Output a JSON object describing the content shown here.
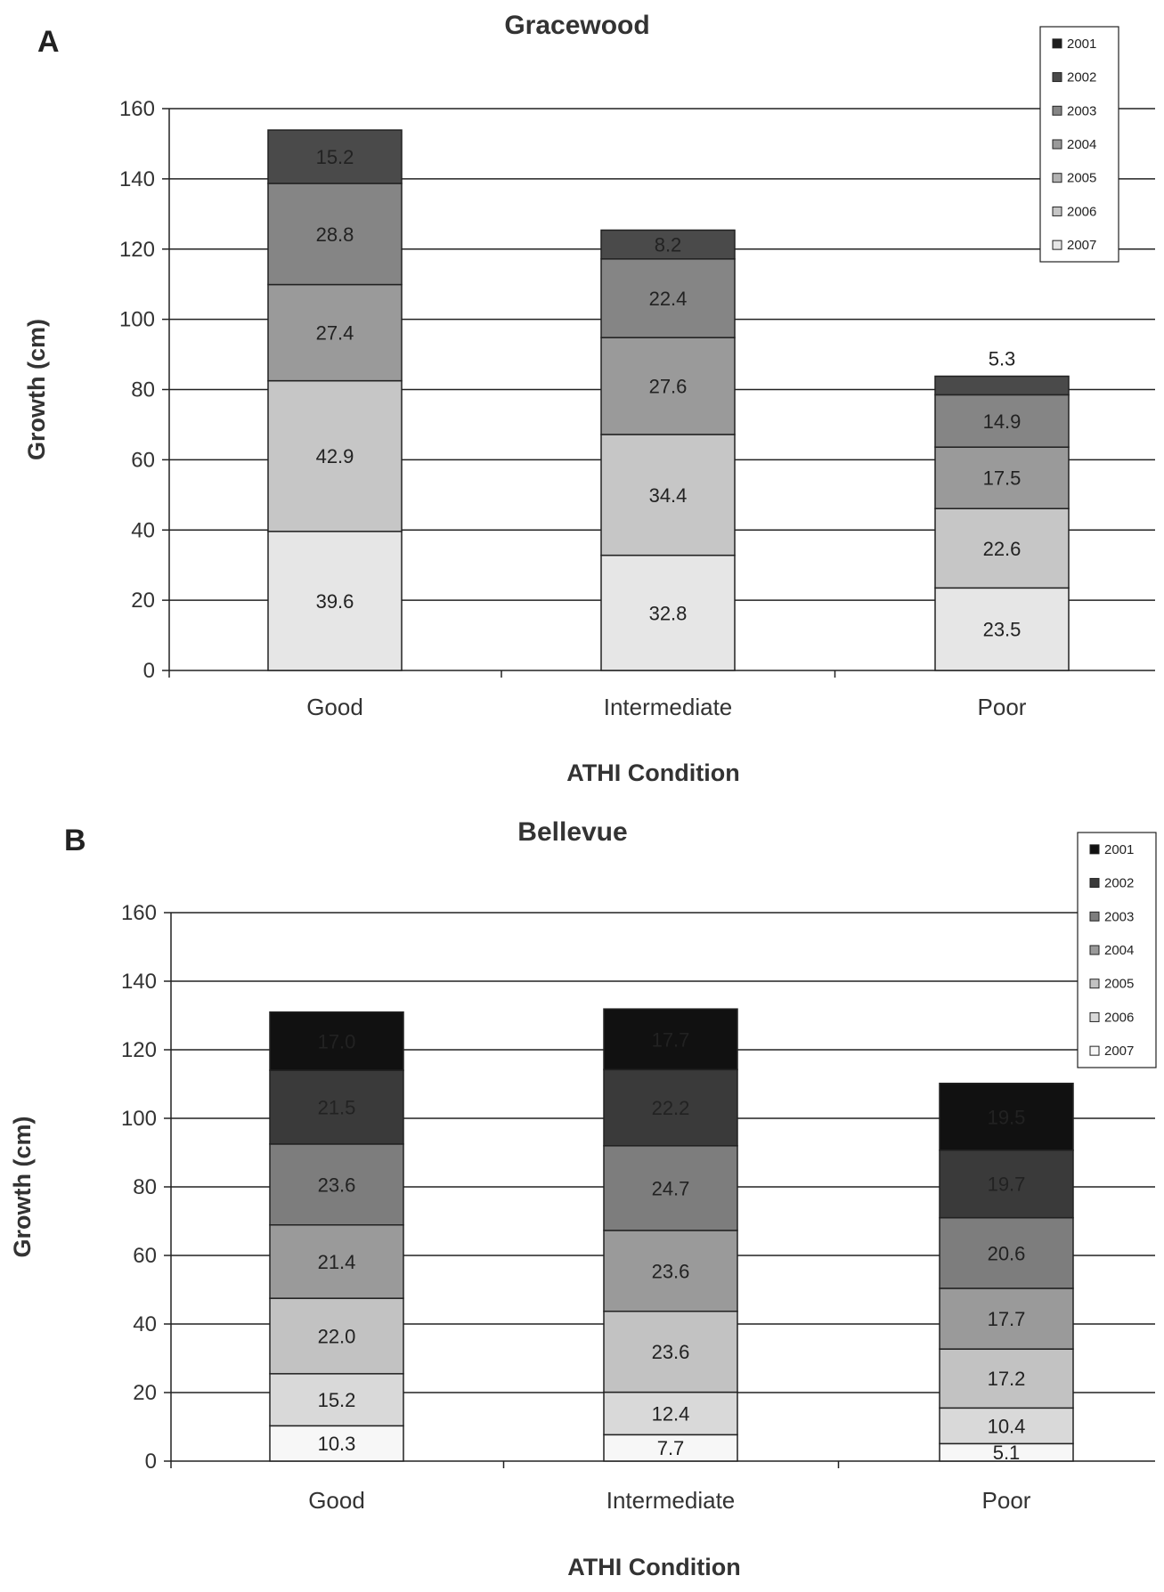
{
  "chart_data": [
    {
      "type": "bar",
      "stacked": true,
      "panel": "A",
      "title": "Gracewood",
      "xlabel": "ATHI Condition",
      "ylabel": "Growth (cm)",
      "ylim": [
        0,
        160
      ],
      "yticks": [
        0,
        20,
        40,
        60,
        80,
        100,
        120,
        140,
        160
      ],
      "grid": true,
      "legend": "top-right",
      "categories": [
        "Good",
        "Intermediate",
        "Poor"
      ],
      "series": [
        {
          "name": "2007",
          "color": "#e6e6e6",
          "values": [
            39.6,
            32.8,
            23.5
          ],
          "labels": [
            "39.6",
            "32.8",
            "23.5"
          ]
        },
        {
          "name": "2006",
          "color": "#c6c6c6",
          "values": [
            42.9,
            34.4,
            22.6
          ],
          "labels": [
            "42.9",
            "34.4",
            "22.6"
          ]
        },
        {
          "name": "2005",
          "color": "#b2b2b2",
          "values": [
            0,
            0,
            0
          ],
          "labels": [
            "",
            "",
            ""
          ]
        },
        {
          "name": "2004",
          "color": "#9a9a9a",
          "values": [
            27.4,
            27.6,
            17.5
          ],
          "labels": [
            "27.4",
            "27.6",
            "17.5"
          ]
        },
        {
          "name": "2003",
          "color": "#858585",
          "values": [
            28.8,
            22.4,
            14.9
          ],
          "labels": [
            "28.8",
            "22.4",
            "14.9"
          ]
        },
        {
          "name": "2002",
          "color": "#4a4a4a",
          "values": [
            15.2,
            8.2,
            5.3
          ],
          "labels": [
            "15.2",
            "8.2",
            "5.3"
          ]
        },
        {
          "name": "2001",
          "color": "#1c1c1c",
          "values": [
            0,
            0,
            0
          ],
          "labels": [
            "",
            "",
            ""
          ]
        }
      ]
    },
    {
      "type": "bar",
      "stacked": true,
      "panel": "B",
      "title": "Bellevue",
      "xlabel": "ATHI Condition",
      "ylabel": "Growth (cm)",
      "ylim": [
        0,
        160
      ],
      "yticks": [
        0,
        20,
        40,
        60,
        80,
        100,
        120,
        140,
        160
      ],
      "grid": true,
      "legend": "top-right",
      "categories": [
        "Good",
        "Intermediate",
        "Poor"
      ],
      "series": [
        {
          "name": "2007",
          "color": "#f7f7f7",
          "values": [
            10.3,
            7.7,
            5.1
          ],
          "labels": [
            "10.3",
            "7.7",
            "5.1"
          ]
        },
        {
          "name": "2006",
          "color": "#d9d9d9",
          "values": [
            15.2,
            12.4,
            10.4
          ],
          "labels": [
            "15.2",
            "12.4",
            "10.4"
          ]
        },
        {
          "name": "2005",
          "color": "#c2c2c2",
          "values": [
            22.0,
            23.6,
            17.2
          ],
          "labels": [
            "22.0",
            "23.6",
            "17.2"
          ]
        },
        {
          "name": "2004",
          "color": "#9a9a9a",
          "values": [
            21.4,
            23.6,
            17.7
          ],
          "labels": [
            "21.4",
            "23.6",
            "17.7"
          ]
        },
        {
          "name": "2003",
          "color": "#7d7d7d",
          "values": [
            23.6,
            24.7,
            20.6
          ],
          "labels": [
            "23.6",
            "24.7",
            "20.6"
          ]
        },
        {
          "name": "2002",
          "color": "#3a3a3a",
          "values": [
            21.5,
            22.2,
            19.7
          ],
          "labels": [
            "21.5",
            "22.2",
            "19.7"
          ]
        },
        {
          "name": "2001",
          "color": "#111111",
          "values": [
            17.0,
            17.7,
            19.5
          ],
          "labels": [
            "17.0",
            "17.7",
            "19.5"
          ]
        }
      ]
    }
  ]
}
